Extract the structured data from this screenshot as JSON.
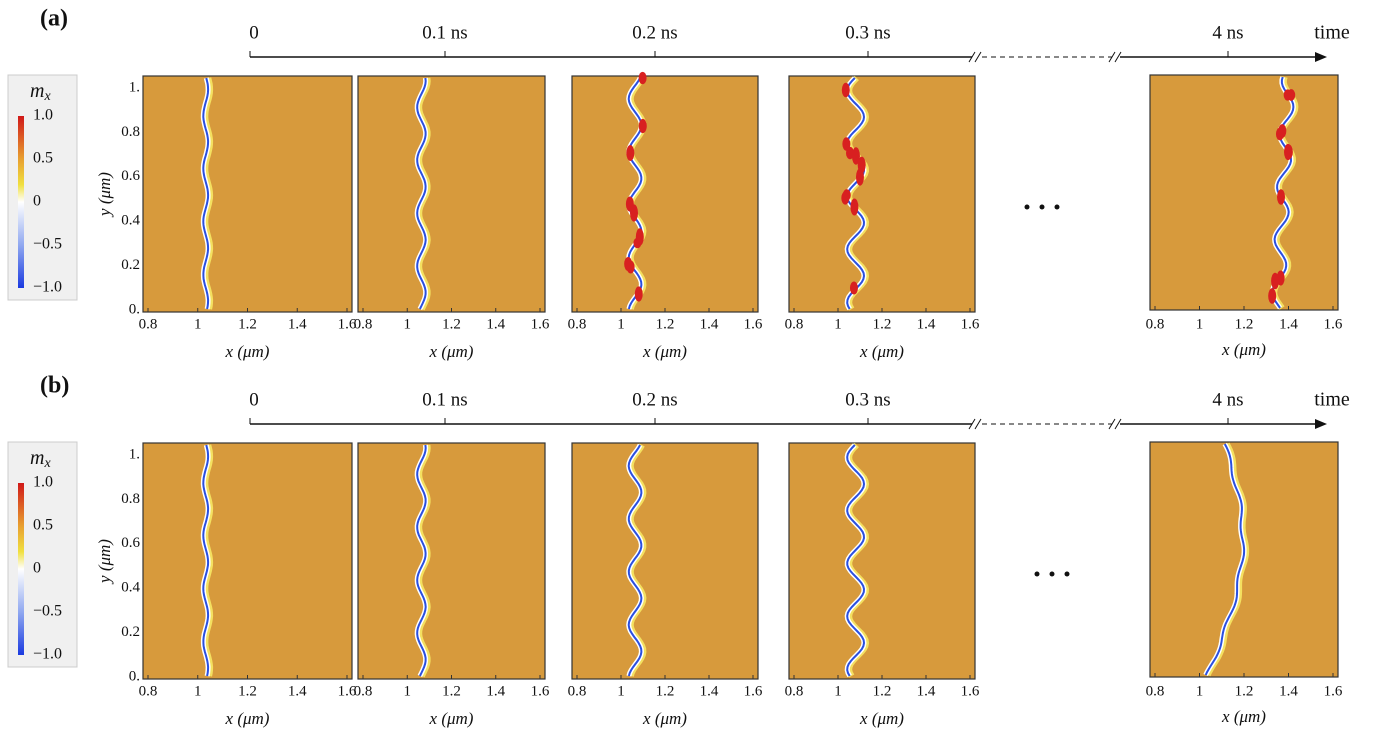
{
  "panels": [
    {
      "label": "(a)",
      "colorbar": {
        "symbol": "m",
        "subscript": "x",
        "ticks": [
          "1.0",
          "0.5",
          "0",
          "−0.5",
          "−1.0"
        ]
      },
      "timeline": {
        "ticks": [
          "0",
          "0.1 ns",
          "0.2 ns",
          "0.3 ns",
          "4 ns"
        ],
        "axis_label": "time"
      }
    },
    {
      "label": "(b)",
      "colorbar": {
        "symbol": "m",
        "subscript": "x",
        "ticks": [
          "1.0",
          "0.5",
          "0",
          "−0.5",
          "−1.0"
        ]
      },
      "timeline": {
        "ticks": [
          "0",
          "0.1 ns",
          "0.2 ns",
          "0.3 ns",
          "4 ns"
        ],
        "axis_label": "time"
      }
    }
  ],
  "axes": {
    "xticks": [
      "0.8",
      "1",
      "1.2",
      "1.4",
      "1.6"
    ],
    "yticks": [
      "0.",
      "0.2",
      "0.4",
      "0.6",
      "0.8",
      "1."
    ],
    "xlabel": "x (μm)",
    "ylabel": "y (μm)"
  }
}
